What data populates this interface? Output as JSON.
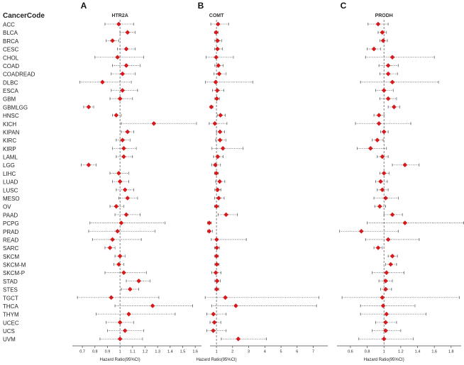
{
  "header_label": "CancerCode",
  "cancer_codes": [
    "ACC",
    "BLCA",
    "BRCA",
    "CESC",
    "CHOL",
    "COAD",
    "COADREAD",
    "DLBC",
    "ESCA",
    "GBM",
    "GBMLGG",
    "HNSC",
    "KICH",
    "KIPAN",
    "KIRC",
    "KIRP",
    "LAML",
    "LGG",
    "LIHC",
    "LUAD",
    "LUSC",
    "MESO",
    "OV",
    "PAAD",
    "PCPG",
    "PRAD",
    "READ",
    "SARC",
    "SKCM",
    "SKCM-M",
    "SKCM-P",
    "STAD",
    "STES",
    "TGCT",
    "THCA",
    "THYM",
    "UCEC",
    "UCS",
    "UVM"
  ],
  "colors": {
    "point": "#d7191c",
    "line": "#555555",
    "refline": "#666666",
    "text": "#222222"
  },
  "chart_data": [
    {
      "type": "forest",
      "panel_letter": "A",
      "title": "HTR2A",
      "xlabel": "Hazard Ratio(95%CI)",
      "xlim": [
        0.62,
        1.65
      ],
      "xticks": [
        "0.7",
        "0.8",
        "0.9",
        "1",
        "1.1",
        "1.2",
        "1.3",
        "1.4",
        "1.5",
        "1.6"
      ],
      "reference": 1.0,
      "hr": [
        0.99,
        1.06,
        0.94,
        1.05,
        0.98,
        1.05,
        1.02,
        0.86,
        1.02,
        1.0,
        0.75,
        0.97,
        1.27,
        1.06,
        1.02,
        1.03,
        1.03,
        0.75,
        0.99,
        1.0,
        1.04,
        1.06,
        0.97,
        1.05,
        1.01,
        0.98,
        0.94,
        0.92,
        1.0,
        0.99,
        1.03,
        1.15,
        1.08,
        0.93,
        1.26,
        1.07,
        1.0,
        1.04,
        1.0
      ],
      "lower": [
        0.88,
        1.0,
        0.89,
        0.98,
        0.8,
        0.94,
        0.93,
        0.68,
        0.93,
        0.92,
        0.71,
        0.94,
        1.01,
        1.01,
        0.97,
        0.94,
        0.97,
        0.69,
        0.92,
        0.94,
        0.97,
        0.99,
        0.92,
        0.96,
        0.76,
        0.75,
        0.78,
        0.88,
        0.96,
        0.95,
        0.88,
        1.05,
        1.01,
        0.66,
        0.96,
        0.81,
        0.89,
        0.9,
        0.84
      ],
      "upper": [
        1.11,
        1.12,
        0.99,
        1.12,
        1.19,
        1.16,
        1.12,
        1.09,
        1.14,
        1.1,
        0.79,
        1.01,
        1.61,
        1.11,
        1.08,
        1.13,
        1.1,
        0.81,
        1.07,
        1.07,
        1.11,
        1.14,
        1.03,
        1.16,
        1.36,
        1.28,
        1.17,
        0.96,
        1.04,
        1.03,
        1.21,
        1.24,
        1.15,
        1.31,
        1.58,
        1.44,
        1.11,
        1.19,
        1.18
      ]
    },
    {
      "type": "forest",
      "panel_letter": "B",
      "title": "COMT",
      "xlabel": "Hazard Ratio(95%CI)",
      "xlim": [
        0.6,
        7.9
      ],
      "xticks": [
        "1",
        "2",
        "3",
        "4",
        "5",
        "6",
        "7"
      ],
      "reference": 1.0,
      "hr": [
        1.1,
        0.98,
        1.07,
        1.06,
        0.98,
        1.12,
        1.17,
        0.95,
        1.05,
        1.02,
        0.68,
        1.25,
        0.9,
        1.22,
        1.22,
        1.4,
        1.08,
        0.93,
        0.99,
        1.2,
        1.07,
        1.14,
        1.0,
        1.6,
        0.55,
        0.55,
        1.01,
        1.02,
        1.0,
        1.02,
        0.96,
        1.04,
        1.01,
        1.55,
        2.2,
        0.81,
        0.87,
        0.8,
        2.35
      ],
      "lower": [
        0.65,
        0.88,
        0.9,
        0.88,
        0.35,
        0.9,
        0.85,
        0.32,
        0.75,
        0.9,
        0.6,
        1.05,
        0.55,
        1.0,
        0.95,
        0.72,
        0.82,
        0.7,
        0.88,
        0.95,
        0.9,
        0.88,
        0.88,
        1.1,
        0.45,
        0.45,
        0.68,
        0.88,
        0.9,
        0.9,
        0.7,
        0.9,
        0.9,
        0.3,
        0.7,
        0.4,
        0.6,
        0.4,
        1.3
      ],
      "upper": [
        1.75,
        1.1,
        1.32,
        1.38,
        2.05,
        1.42,
        1.6,
        3.25,
        1.45,
        1.18,
        0.78,
        1.55,
        1.65,
        1.5,
        1.58,
        2.65,
        1.42,
        1.25,
        1.12,
        1.52,
        1.28,
        1.48,
        1.15,
        2.3,
        0.68,
        0.75,
        2.85,
        1.18,
        1.12,
        1.16,
        1.28,
        1.24,
        1.14,
        7.35,
        7.2,
        1.6,
        1.27,
        1.6,
        4.1
      ]
    },
    {
      "type": "forest",
      "panel_letter": "C",
      "title": "PRODH",
      "xlabel": "Hazard Ratio(95%CI)",
      "xlim": [
        0.44,
        1.92
      ],
      "xticks": [
        "0.6",
        "0.8",
        "1",
        "1.2",
        "1.4",
        "1.6",
        "1.8"
      ],
      "reference": 1.0,
      "hr": [
        0.93,
        0.98,
        0.99,
        0.88,
        1.1,
        1.05,
        1.05,
        1.1,
        1.0,
        1.05,
        1.12,
        0.94,
        0.94,
        1.0,
        0.92,
        0.84,
        0.98,
        1.25,
        1.0,
        0.96,
        0.98,
        1.02,
        0.95,
        1.1,
        1.25,
        0.73,
        1.05,
        0.93,
        1.1,
        1.08,
        1.03,
        1.02,
        1.02,
        0.98,
        0.99,
        1.03,
        1.02,
        1.02,
        1.0
      ],
      "lower": [
        0.81,
        0.93,
        0.95,
        0.8,
        0.78,
        0.94,
        0.95,
        0.72,
        0.9,
        0.95,
        1.05,
        0.88,
        0.66,
        0.96,
        0.86,
        0.68,
        0.92,
        1.1,
        0.95,
        0.9,
        0.92,
        0.88,
        0.89,
        1.0,
        0.8,
        0.47,
        0.78,
        0.88,
        1.05,
        1.02,
        0.86,
        0.94,
        0.96,
        0.5,
        0.72,
        0.72,
        0.9,
        0.86,
        0.7
      ],
      "upper": [
        1.05,
        1.03,
        1.04,
        0.96,
        1.6,
        1.17,
        1.16,
        1.65,
        1.11,
        1.15,
        1.19,
        1.0,
        1.32,
        1.05,
        0.99,
        1.03,
        1.05,
        1.42,
        1.06,
        1.04,
        1.05,
        1.17,
        1.02,
        1.22,
        1.95,
        1.17,
        1.42,
        0.98,
        1.16,
        1.15,
        1.24,
        1.1,
        1.09,
        1.9,
        1.37,
        1.5,
        1.15,
        1.2,
        1.35
      ]
    }
  ]
}
